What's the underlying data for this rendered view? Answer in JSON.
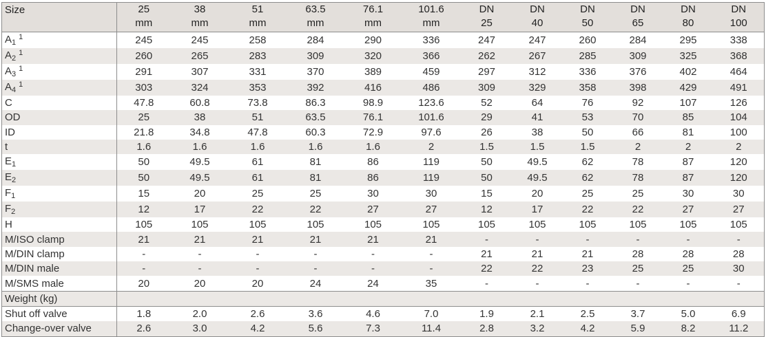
{
  "table": {
    "size_label": "Size",
    "columns": [
      [
        "25",
        "mm"
      ],
      [
        "38",
        "mm"
      ],
      [
        "51",
        "mm"
      ],
      [
        "63.5",
        "mm"
      ],
      [
        "76.1",
        "mm"
      ],
      [
        "101.6",
        "mm"
      ],
      [
        "DN",
        "25"
      ],
      [
        "DN",
        "40"
      ],
      [
        "DN",
        "50"
      ],
      [
        "DN",
        "65"
      ],
      [
        "DN",
        "80"
      ],
      [
        "DN",
        "100"
      ]
    ],
    "rows": [
      {
        "label": "A",
        "sub": "1",
        "sup": "1",
        "values": [
          "245",
          "245",
          "258",
          "284",
          "290",
          "336",
          "247",
          "247",
          "260",
          "284",
          "295",
          "338"
        ]
      },
      {
        "label": "A",
        "sub": "2",
        "sup": "1",
        "values": [
          "260",
          "265",
          "283",
          "309",
          "320",
          "366",
          "262",
          "267",
          "285",
          "309",
          "325",
          "368"
        ]
      },
      {
        "label": "A",
        "sub": "3",
        "sup": "1",
        "values": [
          "291",
          "307",
          "331",
          "370",
          "389",
          "459",
          "297",
          "312",
          "336",
          "376",
          "402",
          "464"
        ]
      },
      {
        "label": "A",
        "sub": "4",
        "sup": "1",
        "values": [
          "303",
          "324",
          "353",
          "392",
          "416",
          "486",
          "309",
          "329",
          "358",
          "398",
          "429",
          "491"
        ]
      },
      {
        "label": "C",
        "sub": "",
        "sup": "",
        "values": [
          "47.8",
          "60.8",
          "73.8",
          "86.3",
          "98.9",
          "123.6",
          "52",
          "64",
          "76",
          "92",
          "107",
          "126"
        ]
      },
      {
        "label": "OD",
        "sub": "",
        "sup": "",
        "values": [
          "25",
          "38",
          "51",
          "63.5",
          "76.1",
          "101.6",
          "29",
          "41",
          "53",
          "70",
          "85",
          "104"
        ]
      },
      {
        "label": "ID",
        "sub": "",
        "sup": "",
        "values": [
          "21.8",
          "34.8",
          "47.8",
          "60.3",
          "72.9",
          "97.6",
          "26",
          "38",
          "50",
          "66",
          "81",
          "100"
        ]
      },
      {
        "label": "t",
        "sub": "",
        "sup": "",
        "values": [
          "1.6",
          "1.6",
          "1.6",
          "1.6",
          "1.6",
          "2",
          "1.5",
          "1.5",
          "1.5",
          "2",
          "2",
          "2"
        ]
      },
      {
        "label": "E",
        "sub": "1",
        "sup": "",
        "values": [
          "50",
          "49.5",
          "61",
          "81",
          "86",
          "119",
          "50",
          "49.5",
          "62",
          "78",
          "87",
          "120"
        ]
      },
      {
        "label": "E",
        "sub": "2",
        "sup": "",
        "values": [
          "50",
          "49.5",
          "61",
          "81",
          "86",
          "119",
          "50",
          "49.5",
          "62",
          "78",
          "87",
          "120"
        ]
      },
      {
        "label": "F",
        "sub": "1",
        "sup": "",
        "values": [
          "15",
          "20",
          "25",
          "25",
          "30",
          "30",
          "15",
          "20",
          "25",
          "25",
          "30",
          "30"
        ]
      },
      {
        "label": "F",
        "sub": "2",
        "sup": "",
        "values": [
          "12",
          "17",
          "22",
          "22",
          "27",
          "27",
          "12",
          "17",
          "22",
          "22",
          "27",
          "27"
        ]
      },
      {
        "label": "H",
        "sub": "",
        "sup": "",
        "values": [
          "105",
          "105",
          "105",
          "105",
          "105",
          "105",
          "105",
          "105",
          "105",
          "105",
          "105",
          "105"
        ]
      },
      {
        "label": "M/ISO clamp",
        "sub": "",
        "sup": "",
        "values": [
          "21",
          "21",
          "21",
          "21",
          "21",
          "21",
          "-",
          "-",
          "-",
          "-",
          "-",
          "-"
        ]
      },
      {
        "label": "M/DIN clamp",
        "sub": "",
        "sup": "",
        "values": [
          "-",
          "-",
          "-",
          "-",
          "-",
          "-",
          "21",
          "21",
          "21",
          "28",
          "28",
          "28"
        ]
      },
      {
        "label": "M/DIN male",
        "sub": "",
        "sup": "",
        "values": [
          "-",
          "-",
          "-",
          "-",
          "-",
          "-",
          "22",
          "22",
          "23",
          "25",
          "25",
          "30"
        ]
      },
      {
        "label": "M/SMS male",
        "sub": "",
        "sup": "",
        "values": [
          "20",
          "20",
          "20",
          "24",
          "24",
          "35",
          "-",
          "-",
          "-",
          "-",
          "-",
          "-"
        ]
      }
    ],
    "weight_label": "Weight (kg)",
    "weight_rows": [
      {
        "label": "Shut off valve",
        "values": [
          "1.8",
          "2.0",
          "2.6",
          "3.6",
          "4.6",
          "7.0",
          "1.9",
          "2.1",
          "2.5",
          "3.7",
          "5.0",
          "6.9"
        ]
      },
      {
        "label": "Change-over valve",
        "values": [
          "2.6",
          "3.0",
          "4.2",
          "5.6",
          "7.3",
          "11.4",
          "2.8",
          "3.2",
          "4.2",
          "5.9",
          "8.2",
          "11.2"
        ]
      }
    ]
  }
}
